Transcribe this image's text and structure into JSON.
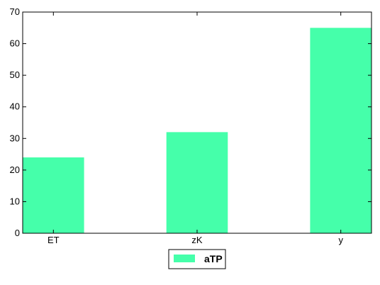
{
  "chart_data": {
    "type": "bar",
    "categories": [
      "ET",
      "zK",
      "y"
    ],
    "series": [
      {
        "name": "aTP",
        "values": [
          24,
          32,
          65
        ],
        "color": "#45FFAA"
      }
    ],
    "ylim": [
      0,
      70
    ],
    "yticks": [
      0,
      10,
      20,
      30,
      40,
      50,
      60,
      70
    ],
    "xlabel": "",
    "ylabel": "",
    "title": "",
    "grid": false,
    "legend_position": "bottom-center"
  }
}
